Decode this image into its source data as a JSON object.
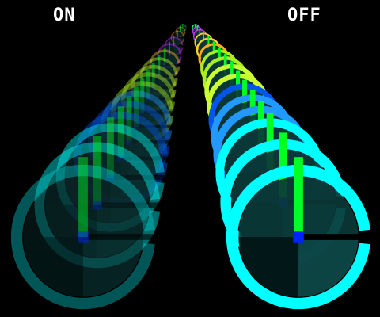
{
  "labels": {
    "on": "ON",
    "off": "OFF"
  },
  "colors": {
    "background": "#000000",
    "label": "#ffffff",
    "hand": "#00ff22",
    "hub": "#0022ff",
    "ring_palette": [
      "#00ffff",
      "#00cccc",
      "#2299ff",
      "#0055ee",
      "#ccff33",
      "#aaee22",
      "#ffcc33",
      "#ffaa22",
      "#cc33ff",
      "#33ff66"
    ]
  },
  "columns": {
    "on": {
      "state": "transparent",
      "ring_count": 16
    },
    "off": {
      "state": "opaque",
      "ring_count": 16
    }
  },
  "icons": [
    "clock-ring-icon",
    "clock-hand-icon",
    "clock-hub-icon"
  ]
}
